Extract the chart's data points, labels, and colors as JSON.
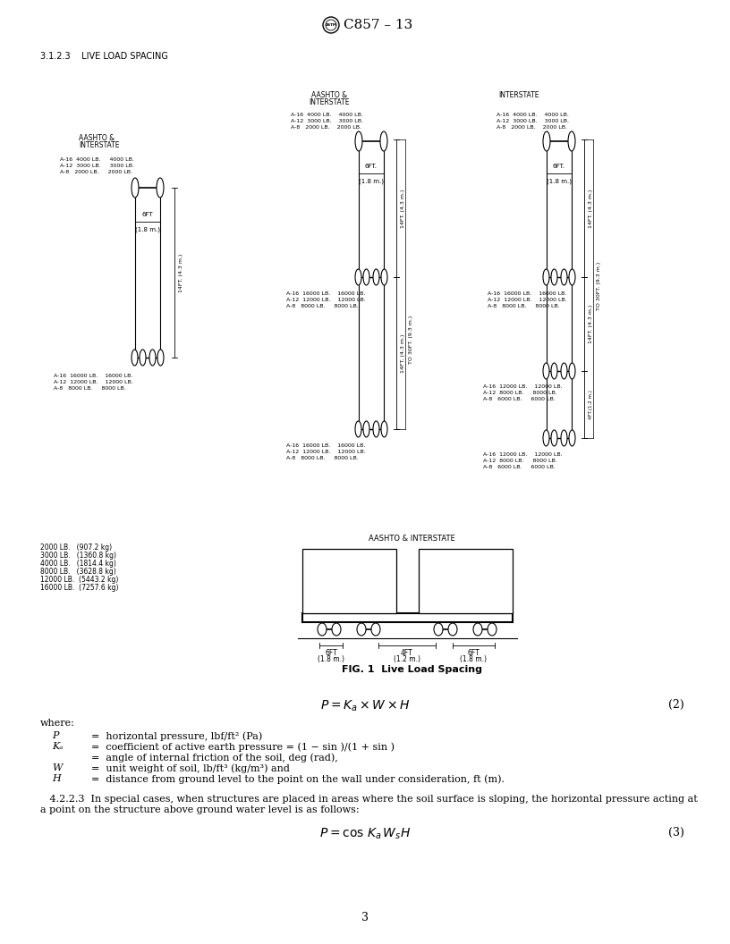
{
  "title": "C857 – 13",
  "page_num": "3",
  "section_label": "3.1.2.3    LIVE LOAD SPACING",
  "bg_color": "#ffffff",
  "text_color": "#000000",
  "fig_caption": "FIG. 1  Live Load Spacing",
  "weight_legend": [
    "2000 LB.   (907.2 kg)",
    "3000 LB.   (1360.8 kg)",
    "4000 LB.   (1814.4 kg)",
    "8000 LB.   (3628.8 kg)",
    "12000 LB.  (5443.2 kg)",
    "16000 LB.  (7257.6 kg)"
  ],
  "eq2_num": "(2)",
  "eq3_num": "(3)"
}
